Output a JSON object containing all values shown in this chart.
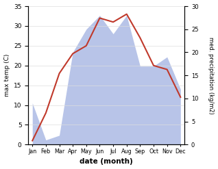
{
  "months": [
    "Jan",
    "Feb",
    "Mar",
    "Apr",
    "May",
    "Jun",
    "Jul",
    "Aug",
    "Sep",
    "Oct",
    "Nov",
    "Dec"
  ],
  "max_temp": [
    1,
    8,
    18,
    23,
    25,
    32,
    31,
    33,
    27,
    20,
    19,
    12
  ],
  "precipitation": [
    9,
    1,
    2,
    20,
    25,
    28,
    24,
    28,
    17,
    17,
    19,
    12
  ],
  "temp_color": "#c0392b",
  "precip_fill_color": "#b8c4e8",
  "ylim_temp": [
    0,
    35
  ],
  "ylim_precip": [
    0,
    30
  ],
  "xlabel": "date (month)",
  "ylabel_left": "max temp (C)",
  "ylabel_right": "med. precipitation (kg/m2)"
}
